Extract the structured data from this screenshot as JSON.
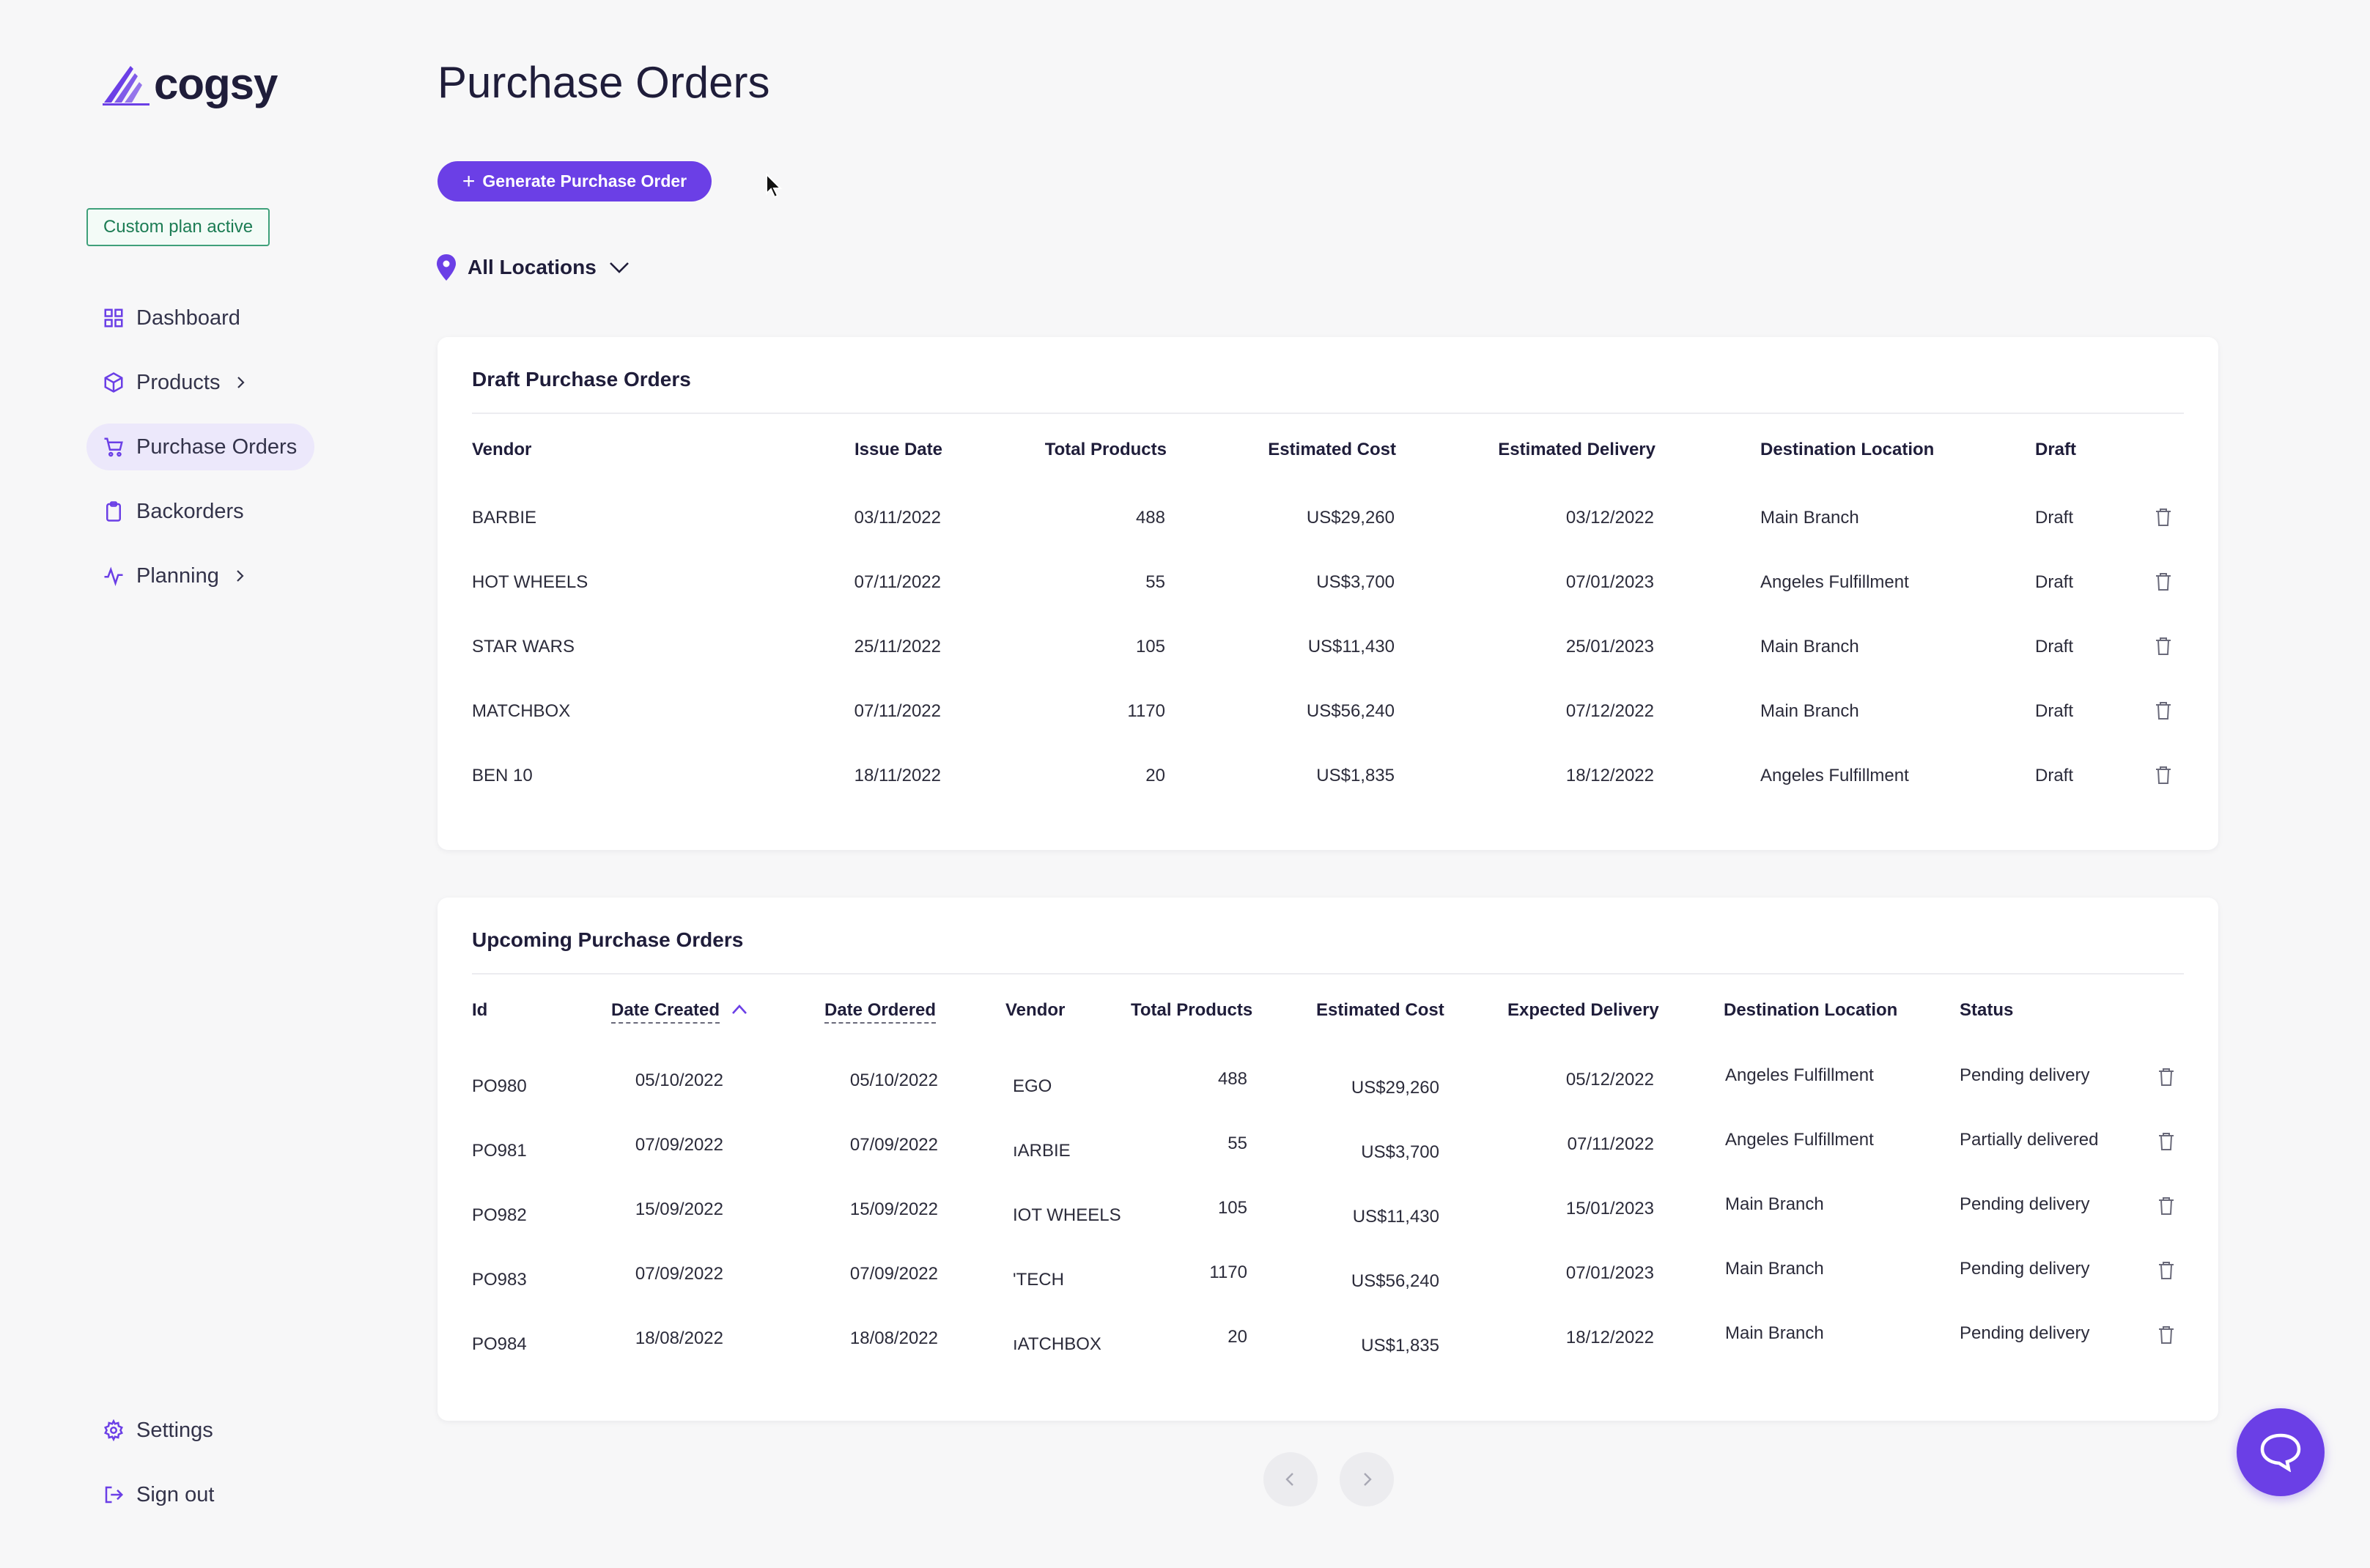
{
  "app": {
    "logo_text": "cogsy",
    "plan_badge": "Custom plan active"
  },
  "sidebar": {
    "items": [
      {
        "label": "Dashboard",
        "icon": "grid-icon"
      },
      {
        "label": "Products",
        "icon": "box-icon",
        "has_chevron": true
      },
      {
        "label": "Purchase Orders",
        "icon": "cart-icon",
        "active": true
      },
      {
        "label": "Backorders",
        "icon": "clipboard-icon"
      },
      {
        "label": "Planning",
        "icon": "activity-icon",
        "has_chevron": true
      }
    ],
    "footer": [
      {
        "label": "Settings",
        "icon": "gear-icon"
      },
      {
        "label": "Sign out",
        "icon": "sign-out-icon"
      }
    ]
  },
  "main": {
    "title": "Purchase Orders",
    "generate_button": "Generate Purchase Order",
    "location_filter": "All Locations"
  },
  "draft": {
    "title": "Draft Purchase Orders",
    "columns": [
      "Vendor",
      "Issue Date",
      "Total Products",
      "Estimated Cost",
      "Estimated Delivery",
      "Destination Location",
      "Draft"
    ],
    "rows": [
      {
        "vendor": "BARBIE",
        "issue_date": "03/11/2022",
        "total": "488",
        "cost": "US$29,260",
        "delivery": "03/12/2022",
        "location": "Main Branch",
        "draft": "Draft"
      },
      {
        "vendor": "HOT WHEELS",
        "issue_date": "07/11/2022",
        "total": "55",
        "cost": "US$3,700",
        "delivery": "07/01/2023",
        "location": "Angeles Fulfillment",
        "draft": "Draft"
      },
      {
        "vendor": "STAR WARS",
        "issue_date": "25/11/2022",
        "total": "105",
        "cost": "US$11,430",
        "delivery": "25/01/2023",
        "location": "Main Branch",
        "draft": "Draft"
      },
      {
        "vendor": "MATCHBOX",
        "issue_date": "07/11/2022",
        "total": "1170",
        "cost": "US$56,240",
        "delivery": "07/12/2022",
        "location": "Main Branch",
        "draft": "Draft"
      },
      {
        "vendor": "BEN 10",
        "issue_date": "18/11/2022",
        "total": "20",
        "cost": "US$1,835",
        "delivery": "18/12/2022",
        "location": "Angeles Fulfillment",
        "draft": "Draft"
      }
    ]
  },
  "upcoming": {
    "title": "Upcoming Purchase Orders",
    "columns": [
      "Id",
      "Date Created",
      "Date Ordered",
      "Vendor",
      "Total Products",
      "Estimated Cost",
      "Expected Delivery",
      "Destination Location",
      "Status"
    ],
    "rows": [
      {
        "id": "PO980",
        "created": "05/10/2022",
        "ordered": "05/10/2022",
        "vendor": "EGO",
        "total": "488",
        "cost": "US$29,260",
        "delivery": "05/12/2022",
        "location": "Angeles Fulfillment",
        "status": "Pending delivery"
      },
      {
        "id": "PO981",
        "created": "07/09/2022",
        "ordered": "07/09/2022",
        "vendor": "ıARBIE",
        "total": "55",
        "cost": "US$3,700",
        "delivery": "07/11/2022",
        "location": "Angeles Fulfillment",
        "status": "Partially delivered"
      },
      {
        "id": "PO982",
        "created": "15/09/2022",
        "ordered": "15/09/2022",
        "vendor": "IOT WHEELS",
        "total": "105",
        "cost": "US$11,430",
        "delivery": "15/01/2023",
        "location": "Main Branch",
        "status": "Pending delivery"
      },
      {
        "id": "PO983",
        "created": "07/09/2022",
        "ordered": "07/09/2022",
        "vendor": "'TECH",
        "total": "1170",
        "cost": "US$56,240",
        "delivery": "07/01/2023",
        "location": "Main Branch",
        "status": "Pending delivery"
      },
      {
        "id": "PO984",
        "created": "18/08/2022",
        "ordered": "18/08/2022",
        "vendor": "ıATCHBOX",
        "total": "20",
        "cost": "US$1,835",
        "delivery": "18/12/2022",
        "location": "Main Branch",
        "status": "Pending delivery"
      }
    ]
  },
  "colors": {
    "accent": "#6b3fe6",
    "active_nav_bg": "#ece8fb",
    "badge_green": "#1c7c54"
  }
}
